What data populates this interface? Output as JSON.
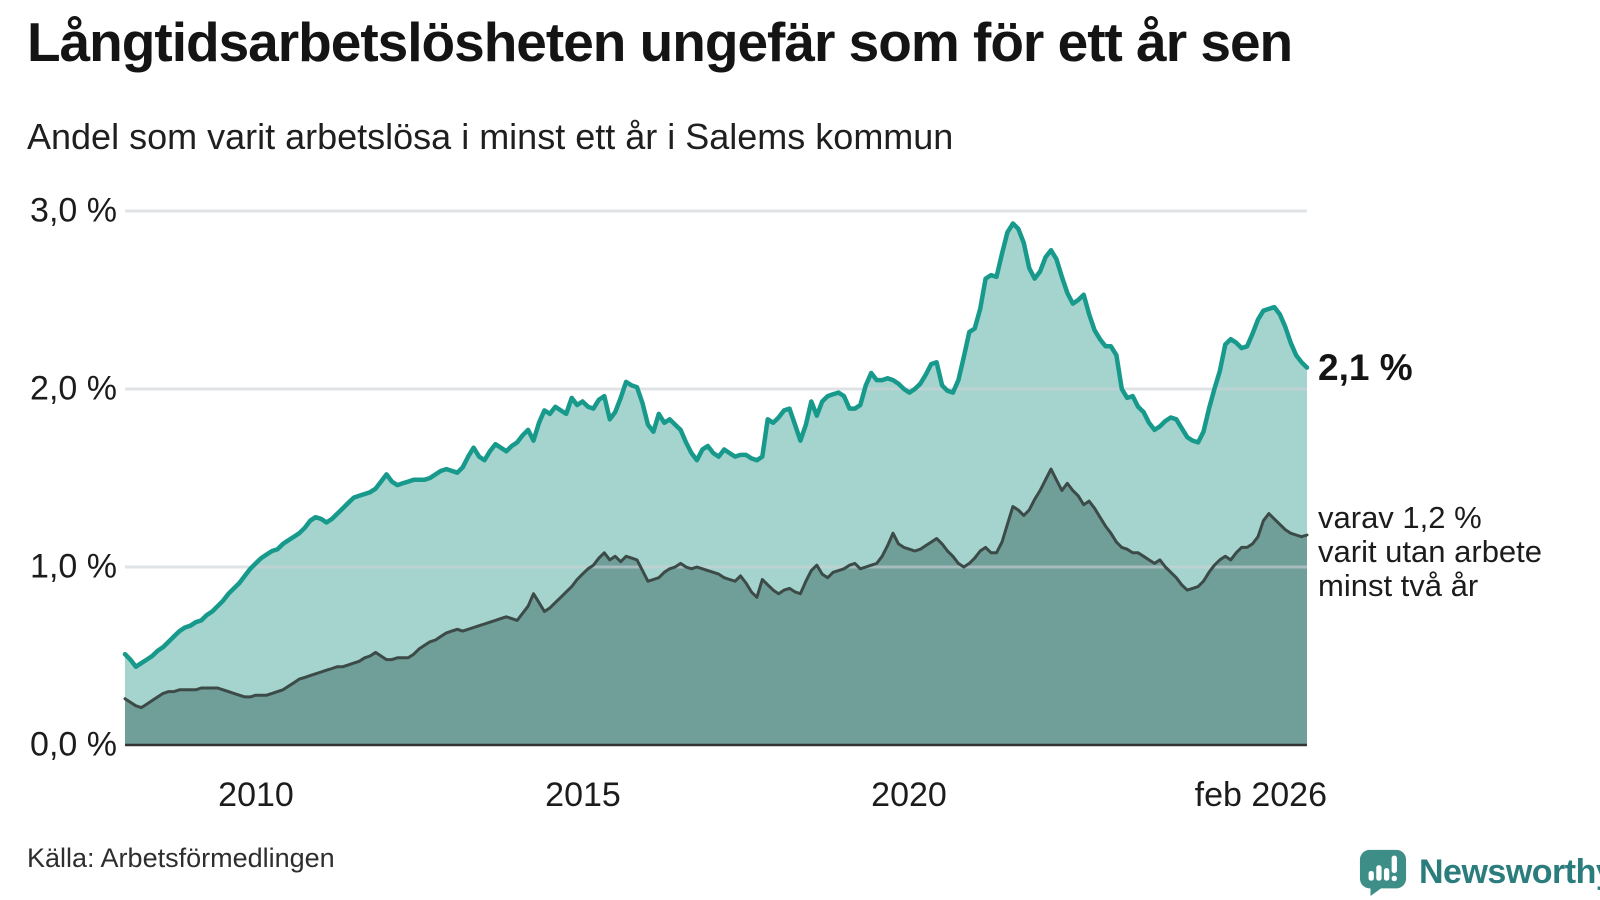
{
  "chart_data": {
    "type": "area",
    "title": "Långtidsarbetslösheten ungefär som för ett år sen",
    "subtitle": "Andel som varit arbetslösa i minst ett år i Salems kommun",
    "x_range": [
      "2008-01",
      "2026-02"
    ],
    "x_ticks": [
      "2010",
      "2015",
      "2020",
      "feb 2026"
    ],
    "y_ticks": [
      "3,0 %",
      "2,0 %",
      "1,0 %",
      "0,0 %"
    ],
    "y_gridline_values": [
      3,
      2,
      1
    ],
    "ylim": [
      0,
      3.1
    ],
    "unit": "percent",
    "grid": "horizontal",
    "legend": "end-of-line labels",
    "annotations": {
      "series1_end_label": "2,1 %",
      "series2_end_label_lines": [
        "varav 1,2 %",
        "varit utan arbete",
        "minst två år"
      ]
    },
    "series": [
      {
        "name": "Andel arbetslösa minst ett år",
        "end_value": 2.1,
        "line_color": "#17998c",
        "fill_color": "#a5d4cf",
        "values": [
          0.51,
          0.48,
          0.44,
          0.46,
          0.48,
          0.5,
          0.53,
          0.55,
          0.58,
          0.61,
          0.64,
          0.66,
          0.67,
          0.69,
          0.7,
          0.73,
          0.75,
          0.78,
          0.81,
          0.85,
          0.88,
          0.91,
          0.95,
          0.99,
          1.02,
          1.05,
          1.07,
          1.09,
          1.1,
          1.13,
          1.15,
          1.17,
          1.19,
          1.22,
          1.26,
          1.28,
          1.27,
          1.25,
          1.27,
          1.3,
          1.33,
          1.36,
          1.39,
          1.4,
          1.41,
          1.42,
          1.44,
          1.48,
          1.52,
          1.48,
          1.46,
          1.47,
          1.48,
          1.49,
          1.49,
          1.49,
          1.5,
          1.52,
          1.54,
          1.55,
          1.54,
          1.53,
          1.56,
          1.62,
          1.67,
          1.62,
          1.6,
          1.65,
          1.69,
          1.67,
          1.65,
          1.68,
          1.7,
          1.74,
          1.77,
          1.71,
          1.81,
          1.88,
          1.86,
          1.9,
          1.88,
          1.86,
          1.95,
          1.91,
          1.93,
          1.9,
          1.89,
          1.94,
          1.96,
          1.83,
          1.87,
          1.95,
          2.04,
          2.02,
          2.01,
          1.92,
          1.8,
          1.76,
          1.86,
          1.81,
          1.83,
          1.8,
          1.77,
          1.7,
          1.64,
          1.6,
          1.66,
          1.68,
          1.64,
          1.62,
          1.66,
          1.64,
          1.62,
          1.63,
          1.63,
          1.61,
          1.6,
          1.62,
          1.83,
          1.81,
          1.84,
          1.88,
          1.89,
          1.8,
          1.71,
          1.8,
          1.93,
          1.85,
          1.93,
          1.96,
          1.97,
          1.98,
          1.96,
          1.89,
          1.89,
          1.91,
          2.02,
          2.09,
          2.05,
          2.05,
          2.06,
          2.05,
          2.03,
          2.0,
          1.98,
          2.0,
          2.03,
          2.08,
          2.14,
          2.15,
          2.02,
          1.99,
          1.98,
          2.05,
          2.18,
          2.32,
          2.34,
          2.45,
          2.62,
          2.64,
          2.63,
          2.76,
          2.88,
          2.93,
          2.9,
          2.82,
          2.68,
          2.62,
          2.66,
          2.74,
          2.78,
          2.73,
          2.63,
          2.54,
          2.48,
          2.5,
          2.53,
          2.42,
          2.33,
          2.28,
          2.24,
          2.24,
          2.19,
          2.0,
          1.95,
          1.96,
          1.9,
          1.87,
          1.81,
          1.77,
          1.79,
          1.82,
          1.84,
          1.83,
          1.78,
          1.73,
          1.71,
          1.7,
          1.76,
          1.89,
          2.0,
          2.1,
          2.25,
          2.28,
          2.26,
          2.23,
          2.24,
          2.31,
          2.39,
          2.44,
          2.45,
          2.46,
          2.42,
          2.35,
          2.26,
          2.19,
          2.15,
          2.12
        ]
      },
      {
        "name": "varav utan arbete minst två år",
        "end_value": 1.2,
        "line_color": "#3c4b47",
        "fill_color": "#709e99",
        "values": [
          0.26,
          0.24,
          0.22,
          0.21,
          0.23,
          0.25,
          0.27,
          0.29,
          0.3,
          0.3,
          0.31,
          0.31,
          0.31,
          0.31,
          0.32,
          0.32,
          0.32,
          0.32,
          0.31,
          0.3,
          0.29,
          0.28,
          0.27,
          0.27,
          0.28,
          0.28,
          0.28,
          0.29,
          0.3,
          0.31,
          0.33,
          0.35,
          0.37,
          0.38,
          0.39,
          0.4,
          0.41,
          0.42,
          0.43,
          0.44,
          0.44,
          0.45,
          0.46,
          0.47,
          0.49,
          0.5,
          0.52,
          0.5,
          0.48,
          0.48,
          0.49,
          0.49,
          0.49,
          0.51,
          0.54,
          0.56,
          0.58,
          0.59,
          0.61,
          0.63,
          0.64,
          0.65,
          0.64,
          0.65,
          0.66,
          0.67,
          0.68,
          0.69,
          0.7,
          0.71,
          0.72,
          0.71,
          0.7,
          0.74,
          0.78,
          0.85,
          0.8,
          0.75,
          0.77,
          0.8,
          0.83,
          0.86,
          0.89,
          0.93,
          0.96,
          0.99,
          1.01,
          1.05,
          1.08,
          1.04,
          1.06,
          1.03,
          1.06,
          1.05,
          1.04,
          0.98,
          0.92,
          0.93,
          0.94,
          0.97,
          0.99,
          1.0,
          1.02,
          1.0,
          0.99,
          1.0,
          0.99,
          0.98,
          0.97,
          0.96,
          0.94,
          0.93,
          0.92,
          0.95,
          0.91,
          0.86,
          0.83,
          0.93,
          0.9,
          0.87,
          0.85,
          0.87,
          0.88,
          0.86,
          0.85,
          0.92,
          0.98,
          1.01,
          0.96,
          0.94,
          0.97,
          0.98,
          0.99,
          1.01,
          1.02,
          0.99,
          1.0,
          1.01,
          1.02,
          1.06,
          1.12,
          1.19,
          1.13,
          1.11,
          1.1,
          1.09,
          1.1,
          1.12,
          1.14,
          1.16,
          1.13,
          1.09,
          1.06,
          1.02,
          1.0,
          1.02,
          1.05,
          1.09,
          1.11,
          1.08,
          1.08,
          1.14,
          1.24,
          1.34,
          1.32,
          1.29,
          1.32,
          1.38,
          1.43,
          1.49,
          1.55,
          1.49,
          1.43,
          1.47,
          1.43,
          1.4,
          1.35,
          1.37,
          1.33,
          1.28,
          1.23,
          1.19,
          1.14,
          1.11,
          1.1,
          1.08,
          1.08,
          1.06,
          1.04,
          1.02,
          1.04,
          1.0,
          0.97,
          0.94,
          0.9,
          0.87,
          0.88,
          0.89,
          0.92,
          0.97,
          1.01,
          1.04,
          1.06,
          1.04,
          1.08,
          1.11,
          1.11,
          1.13,
          1.17,
          1.26,
          1.3,
          1.27,
          1.24,
          1.21,
          1.19,
          1.18,
          1.17,
          1.18
        ]
      }
    ]
  },
  "footer": {
    "source_label": "Källa: Arbetsförmedlingen",
    "brand_name": "Newsworthy",
    "brand_color": "#2b7c7c",
    "brand_mark_color": "#3e8e88"
  }
}
